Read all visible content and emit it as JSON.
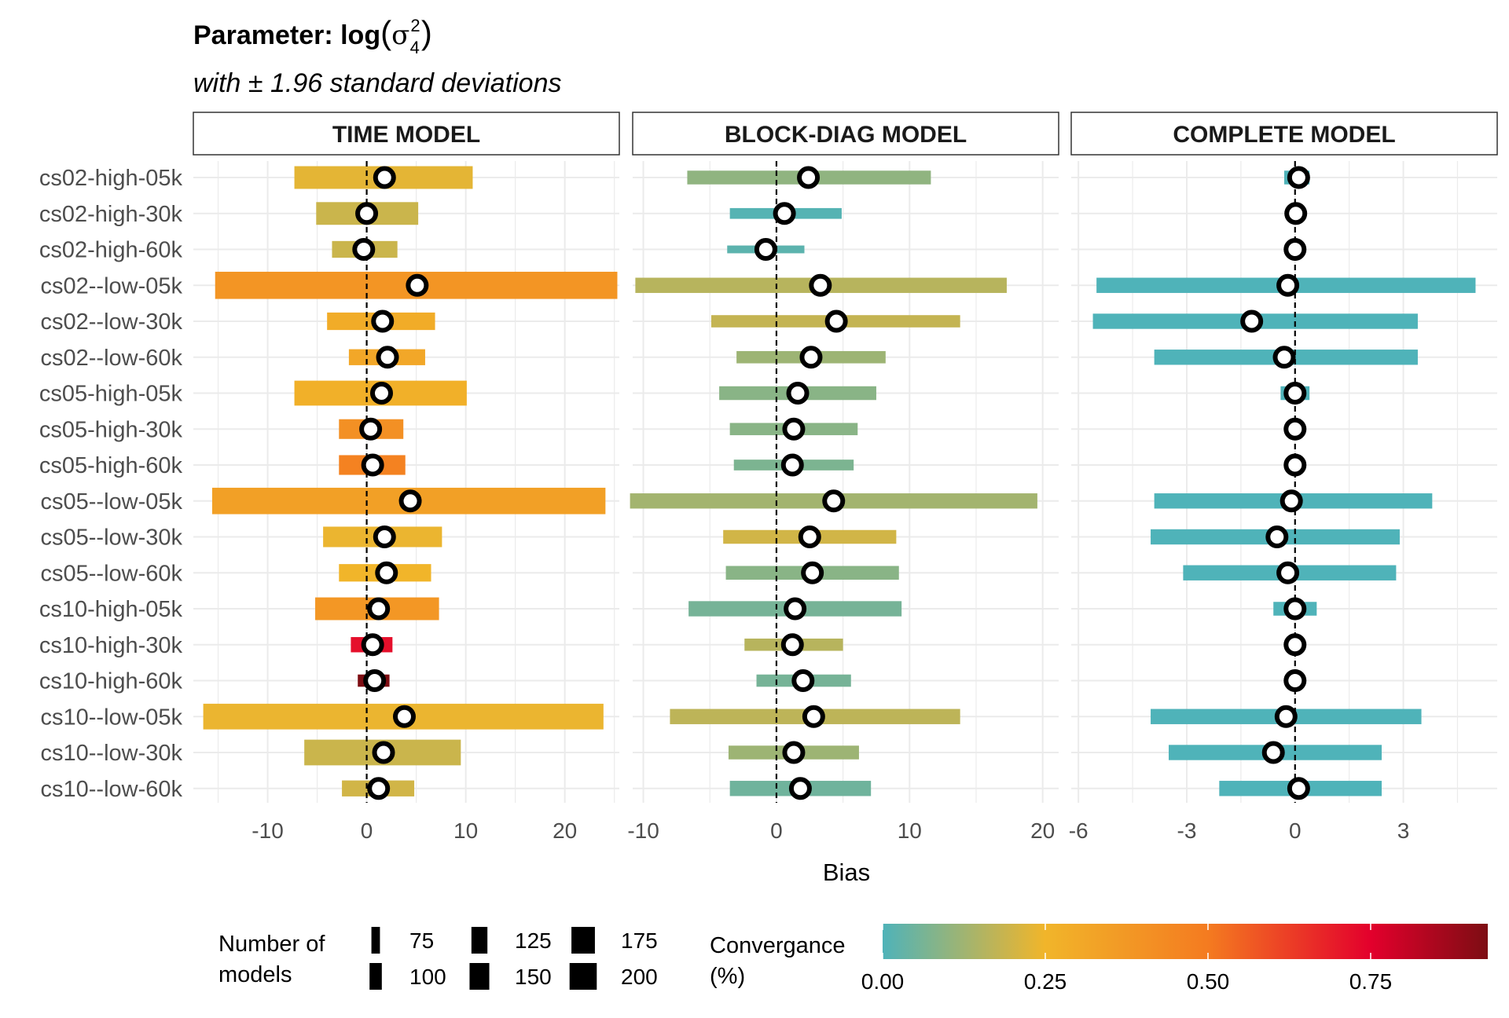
{
  "chart_data": {
    "type": "interval-dot",
    "title_prefix": "Parameter: log",
    "title_symbol": "σ",
    "title_sup": "2",
    "title_sub": "4",
    "subtitle": "with ± 1.96 standard deviations",
    "xlabel": "Bias",
    "categories": [
      "cs02-high-05k",
      "cs02-high-30k",
      "cs02-high-60k",
      "cs02--low-05k",
      "cs02--low-30k",
      "cs02--low-60k",
      "cs05-high-05k",
      "cs05-high-30k",
      "cs05-high-60k",
      "cs05--low-05k",
      "cs05--low-30k",
      "cs05--low-60k",
      "cs10-high-05k",
      "cs10-high-30k",
      "cs10-high-60k",
      "cs10--low-05k",
      "cs10--low-30k",
      "cs10--low-60k"
    ],
    "panels": [
      {
        "label": "TIME MODEL",
        "xlim": [
          -17.5,
          25.5
        ],
        "xticks": [
          -10,
          0,
          10,
          20
        ],
        "xtick_labels": [
          "-10",
          "0",
          "10",
          "20"
        ],
        "series": {
          "bias": [
            1.8,
            0.0,
            -0.3,
            5.1,
            1.6,
            2.1,
            1.5,
            0.4,
            0.6,
            4.4,
            1.8,
            2.0,
            1.2,
            0.6,
            0.8,
            3.8,
            1.7,
            1.2
          ],
          "lower": [
            -7.3,
            -5.1,
            -3.5,
            -15.3,
            -4.0,
            -1.8,
            -7.3,
            -2.8,
            -2.8,
            -15.6,
            -4.4,
            -2.8,
            -5.2,
            -1.6,
            -0.9,
            -16.5,
            -6.3,
            -2.5
          ],
          "upper": [
            10.7,
            5.2,
            3.1,
            25.3,
            6.9,
            5.9,
            10.1,
            3.7,
            3.9,
            24.1,
            7.6,
            6.5,
            7.3,
            2.6,
            2.3,
            23.9,
            9.5,
            4.8
          ],
          "convergence": [
            0.23,
            0.19,
            0.19,
            0.39,
            0.29,
            0.31,
            0.27,
            0.41,
            0.47,
            0.34,
            0.24,
            0.25,
            0.38,
            0.72,
            0.93,
            0.24,
            0.19,
            0.2
          ],
          "n_models": [
            170,
            170,
            130,
            200,
            135,
            125,
            185,
            150,
            150,
            195,
            155,
            135,
            170,
            120,
            100,
            190,
            190,
            125
          ]
        }
      },
      {
        "label": "BLOCK-DIAG MODEL",
        "xlim": [
          -10.8,
          21.2
        ],
        "xticks": [
          -10,
          0,
          10,
          20
        ],
        "xtick_labels": [
          "-10",
          "0",
          "10",
          "20"
        ],
        "series": {
          "bias": [
            2.4,
            0.6,
            -0.8,
            3.3,
            4.5,
            2.6,
            1.6,
            1.3,
            1.2,
            4.3,
            2.5,
            2.7,
            1.4,
            1.2,
            2.0,
            2.8,
            1.3,
            1.8
          ],
          "lower": [
            -6.7,
            -3.5,
            -3.7,
            -10.6,
            -4.9,
            -3.0,
            -4.3,
            -3.5,
            -3.2,
            -11.0,
            -4.0,
            -3.8,
            -6.6,
            -2.4,
            -1.5,
            -8.0,
            -3.6,
            -3.5
          ],
          "upper": [
            11.6,
            4.9,
            2.1,
            17.3,
            13.8,
            8.2,
            7.5,
            6.1,
            5.8,
            19.6,
            9.0,
            9.2,
            9.4,
            5.0,
            5.6,
            13.8,
            6.2,
            7.1
          ],
          "convergence": [
            0.1,
            0.01,
            0.02,
            0.16,
            0.18,
            0.12,
            0.09,
            0.09,
            0.07,
            0.13,
            0.2,
            0.09,
            0.06,
            0.16,
            0.06,
            0.17,
            0.12,
            0.05
          ],
          "n_models": [
            110,
            90,
            70,
            120,
            100,
            100,
            110,
            100,
            90,
            120,
            110,
            110,
            120,
            100,
            100,
            120,
            110,
            120
          ]
        }
      },
      {
        "label": "COMPLETE MODEL",
        "xlim": [
          -6.2,
          5.6
        ],
        "xticks": [
          -6,
          -3,
          0,
          3
        ],
        "xtick_labels": [
          "-6",
          "-3",
          "0",
          "3"
        ],
        "series": {
          "bias": [
            0.1,
            0.02,
            0.0,
            -0.2,
            -1.2,
            -0.3,
            0.0,
            0.0,
            0.0,
            -0.1,
            -0.5,
            -0.2,
            0.0,
            0.0,
            0.0,
            -0.25,
            -0.6,
            0.1
          ],
          "lower": [
            -0.3,
            -0.05,
            -0.05,
            -5.5,
            -5.6,
            -3.9,
            -0.4,
            -0.05,
            -0.05,
            -3.9,
            -4.0,
            -3.1,
            -0.6,
            -0.05,
            -0.05,
            -4.0,
            -3.5,
            -2.1
          ],
          "upper": [
            0.4,
            0.05,
            0.05,
            5.0,
            3.4,
            3.4,
            0.4,
            0.05,
            0.05,
            3.8,
            2.9,
            2.8,
            0.6,
            0.05,
            0.05,
            3.5,
            2.4,
            2.4
          ],
          "convergence": [
            0.0,
            0.0,
            0.0,
            0.0,
            0.0,
            0.0,
            0.0,
            0.0,
            0.0,
            0.0,
            0.0,
            0.0,
            0.0,
            0.0,
            0.0,
            0.0,
            0.0,
            0.0
          ],
          "n_models": [
            110,
            100,
            100,
            120,
            120,
            120,
            110,
            100,
            100,
            120,
            120,
            120,
            110,
            100,
            100,
            120,
            120,
            120
          ]
        }
      }
    ],
    "legend_size": {
      "title_lines": [
        "Number of",
        "models"
      ],
      "items": [
        75,
        100,
        125,
        150,
        175,
        200
      ]
    },
    "legend_color": {
      "title_lines": [
        "Convergance",
        "(%)"
      ],
      "ticks": [
        0.0,
        0.25,
        0.5,
        0.75
      ],
      "tick_labels": [
        "0.00",
        "0.25",
        "0.50",
        "0.75"
      ],
      "range": [
        0,
        0.93
      ],
      "colors": [
        "#4fb3b9",
        "#f1b52a",
        "#f47b20",
        "#e3002c",
        "#7d0d13"
      ]
    },
    "grid": true,
    "zero_line": "dashed"
  }
}
